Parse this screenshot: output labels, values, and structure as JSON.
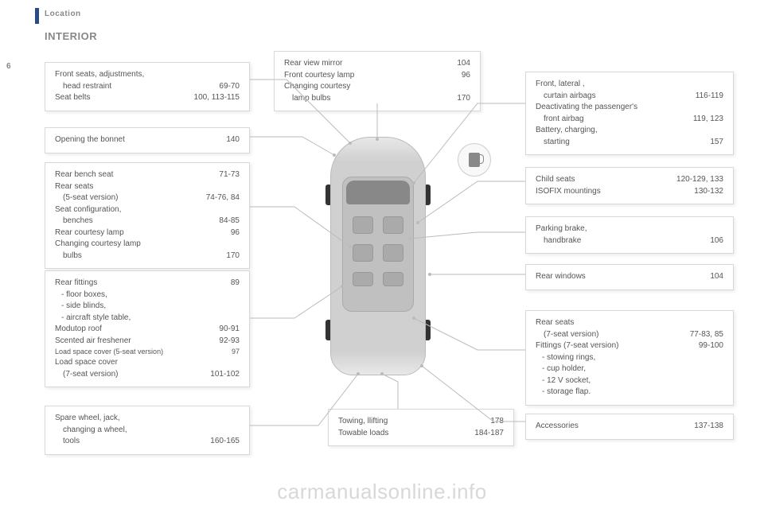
{
  "header": {
    "section": "Location",
    "title": "INTERIOR",
    "page_num": "6"
  },
  "watermark": "carmanualsonline.info",
  "boxes": {
    "b1": [
      {
        "label": "Front seats, adjustments,",
        "pg": ""
      },
      {
        "label": "head restraint",
        "pg": "69-70",
        "indent": true
      },
      {
        "label": "Seat belts",
        "pg": "100, 113-115"
      }
    ],
    "b2": [
      {
        "label": "Opening the bonnet",
        "pg": "140"
      }
    ],
    "b3": [
      {
        "label": "Rear bench seat",
        "pg": "71-73"
      },
      {
        "label": "Rear seats",
        "pg": ""
      },
      {
        "label": "(5-seat version)",
        "pg": "74-76, 84",
        "indent": true
      },
      {
        "label": "Seat configuration,",
        "pg": ""
      },
      {
        "label": "benches",
        "pg": "84-85",
        "indent": true
      },
      {
        "label": "Rear courtesy lamp",
        "pg": "96"
      },
      {
        "label": "Changing courtesy lamp",
        "pg": ""
      },
      {
        "label": "bulbs",
        "pg": "170",
        "indent": true
      }
    ],
    "b4": [
      {
        "label": "Rear fittings",
        "pg": "89"
      },
      {
        "label": "floor boxes,",
        "bullet": true
      },
      {
        "label": "side blinds,",
        "bullet": true
      },
      {
        "label": "aircraft style table,",
        "bullet": true
      },
      {
        "label": "Modutop roof",
        "pg": "90-91"
      },
      {
        "label": "Scented air freshener",
        "pg": "92-93"
      },
      {
        "label": "Load space cover (5-seat version)",
        "pg": "97",
        "small": true
      },
      {
        "label": "Load space cover",
        "pg": ""
      },
      {
        "label": "(7-seat version)",
        "pg": "101-102",
        "indent": true
      }
    ],
    "b5": [
      {
        "label": "Spare wheel, jack,",
        "pg": ""
      },
      {
        "label": "changing a wheel,",
        "pg": "",
        "indent": true
      },
      {
        "label": "tools",
        "pg": "160-165",
        "indent": true
      }
    ],
    "b6": [
      {
        "label": "Rear view mirror",
        "pg": "104"
      },
      {
        "label": "Front courtesy lamp",
        "pg": "96"
      },
      {
        "label": "Changing courtesy",
        "pg": ""
      },
      {
        "label": "lamp bulbs",
        "pg": "170",
        "indent": true
      }
    ],
    "b7": [
      {
        "label": "Towing, llifting",
        "pg": "178"
      },
      {
        "label": "Towable loads",
        "pg": "184-187"
      }
    ],
    "b8": [
      {
        "label": "Front, lateral ,",
        "pg": ""
      },
      {
        "label": "curtain airbags",
        "pg": "116-119",
        "indent": true
      },
      {
        "label": "Deactivating the passenger's",
        "pg": ""
      },
      {
        "label": "front airbag",
        "pg": "119, 123",
        "indent": true
      },
      {
        "label": "Battery, charging,",
        "pg": ""
      },
      {
        "label": "starting",
        "pg": "157",
        "indent": true
      }
    ],
    "b9": [
      {
        "label": "Child seats",
        "pg": "120-129, 133"
      },
      {
        "label": "ISOFIX mountings",
        "pg": "130-132"
      }
    ],
    "b10": [
      {
        "label": "Parking brake,",
        "pg": ""
      },
      {
        "label": "handbrake",
        "pg": "106",
        "indent": true
      }
    ],
    "b11": [
      {
        "label": "Rear windows",
        "pg": "104"
      }
    ],
    "b12": [
      {
        "label": "Rear seats",
        "pg": ""
      },
      {
        "label": "(7-seat version)",
        "pg": "77-83, 85",
        "indent": true
      },
      {
        "label": "Fittings (7-seat version)",
        "pg": "99-100"
      },
      {
        "label": "stowing rings,",
        "bullet": true
      },
      {
        "label": "cup holder,",
        "bullet": true
      },
      {
        "label": "12 V socket,",
        "bullet": true
      },
      {
        "label": "storage flap.",
        "bullet": true
      }
    ],
    "b13": [
      {
        "label": "Accessories",
        "pg": "137-138"
      }
    ]
  }
}
